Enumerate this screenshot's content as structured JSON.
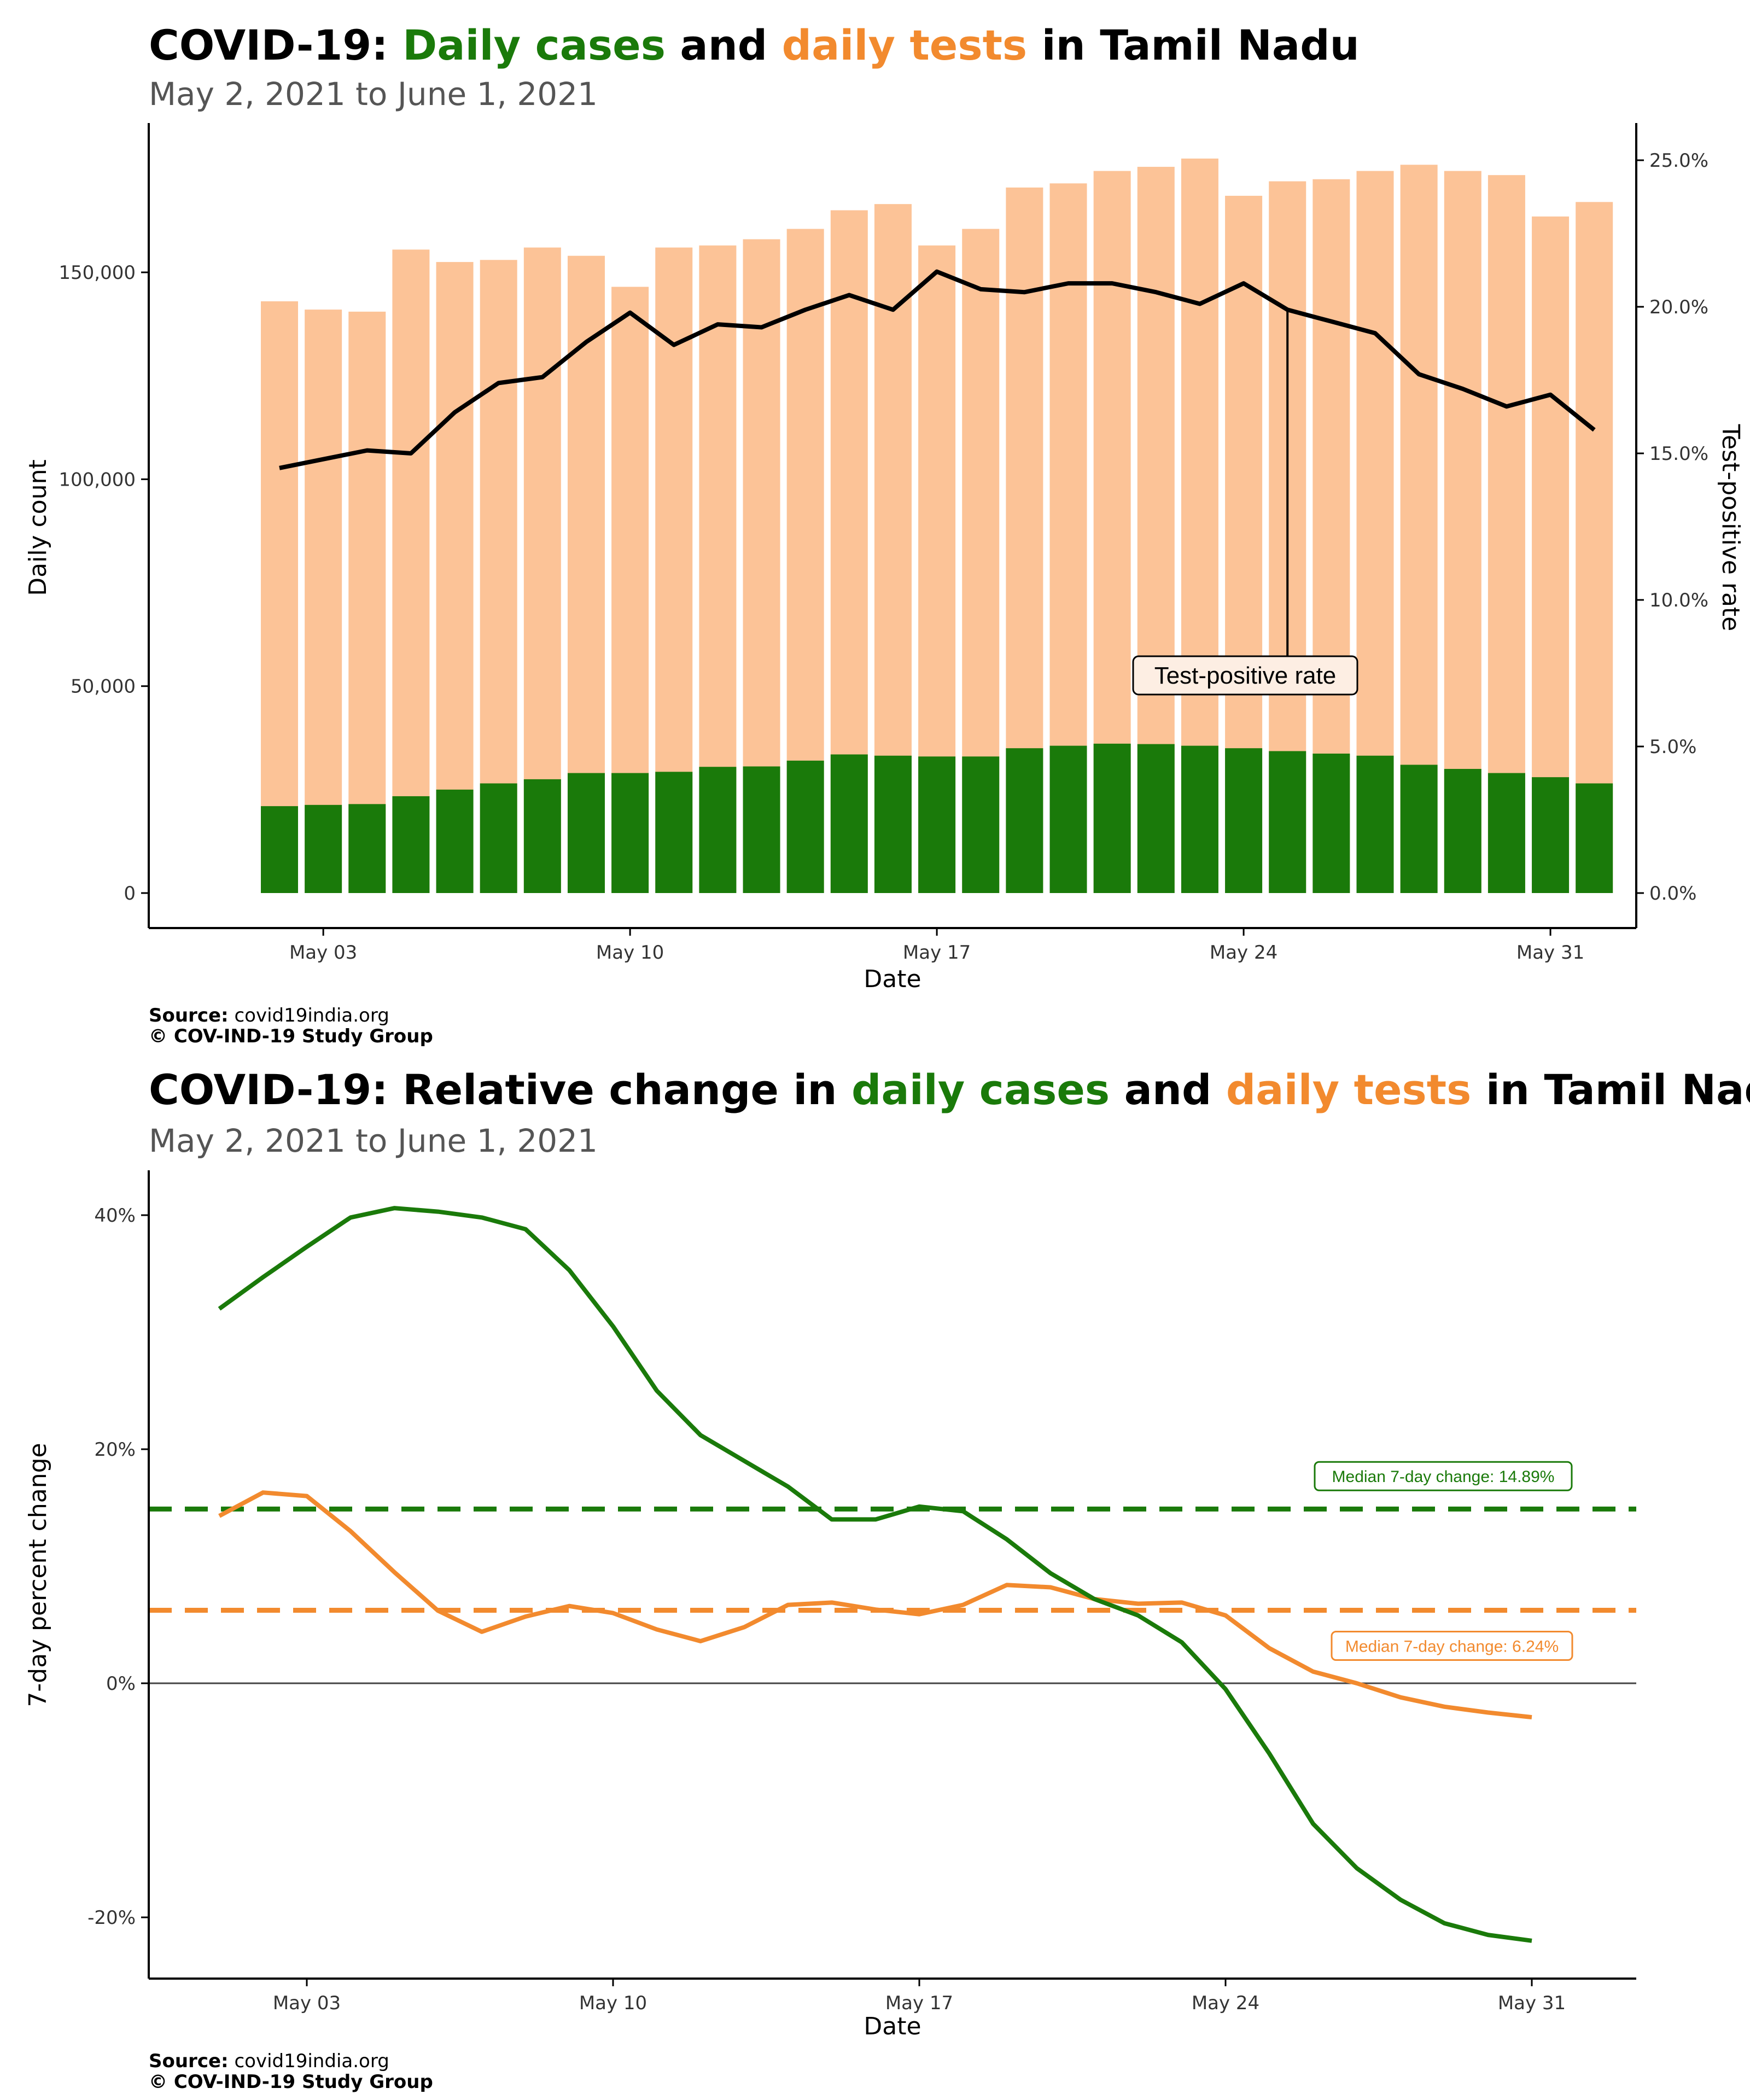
{
  "chart1": {
    "title_prefix": "COVID-19:",
    "title_cases": "Daily cases",
    "title_and": "and",
    "title_tests": "daily tests",
    "title_suffix": "in Tamil Nadu",
    "subtitle": "May  2, 2021 to June  1, 2021",
    "source_label": "Source:",
    "source_text": "covid19india.org",
    "copyright": "© COV-IND-19 Study Group"
  },
  "chart2": {
    "title_prefix": "COVID-19: Relative change in",
    "title_cases": "daily cases",
    "title_and": "and",
    "title_tests": "daily tests",
    "title_suffix": "in Tamil Nadu",
    "subtitle": "May  2, 2021 to June  1, 2021",
    "source_label": "Source:",
    "source_text": "covid19india.org",
    "copyright": "© COV-IND-19 Study Group"
  },
  "colors": {
    "cases": "#1a7a0a",
    "tests": "#fcc397",
    "tests_line": "#f28a2e",
    "tpr": "#000000"
  },
  "chart_data": [
    {
      "type": "bar",
      "xlabel": "Date",
      "ylabel": "Daily count",
      "y2label": "Test-positive rate",
      "ylim": [
        0,
        180000
      ],
      "y2lim": [
        0,
        25
      ],
      "yticks": [
        "0",
        "50,000",
        "100,000",
        "150,000"
      ],
      "yticks_values": [
        0,
        50000,
        100000,
        150000
      ],
      "y2ticks": [
        "0.0%",
        "5.0%",
        "10.0%",
        "15.0%",
        "20.0%",
        "25.0%"
      ],
      "y2ticks_values": [
        0,
        5,
        10,
        15,
        20,
        25
      ],
      "xticks": [
        "May 03",
        "May 10",
        "May 17",
        "May 24",
        "May 31"
      ],
      "xticks_day": [
        1,
        8,
        15,
        22,
        29
      ],
      "annotation": "Test-positive rate",
      "dates": [
        "2021-05-02",
        "2021-05-03",
        "2021-05-04",
        "2021-05-05",
        "2021-05-06",
        "2021-05-07",
        "2021-05-08",
        "2021-05-09",
        "2021-05-10",
        "2021-05-11",
        "2021-05-12",
        "2021-05-13",
        "2021-05-14",
        "2021-05-15",
        "2021-05-16",
        "2021-05-17",
        "2021-05-18",
        "2021-05-19",
        "2021-05-20",
        "2021-05-21",
        "2021-05-22",
        "2021-05-23",
        "2021-05-24",
        "2021-05-25",
        "2021-05-26",
        "2021-05-27",
        "2021-05-28",
        "2021-05-29",
        "2021-05-30",
        "2021-05-31",
        "2021-06-01"
      ],
      "series": [
        {
          "name": "Daily tests",
          "values": [
            143000,
            141000,
            140500,
            155500,
            152500,
            153000,
            156000,
            154000,
            146500,
            156000,
            156500,
            158000,
            160500,
            165000,
            166500,
            156500,
            160500,
            170500,
            171500,
            174500,
            175500,
            177500,
            168500,
            172000,
            172500,
            174500,
            176000,
            174500,
            173500,
            163500,
            167000
          ]
        },
        {
          "name": "Daily cases",
          "values": [
            21000,
            21300,
            21500,
            23400,
            25000,
            26500,
            27500,
            29000,
            29000,
            29300,
            30500,
            30600,
            32000,
            33500,
            33200,
            33000,
            33000,
            35000,
            35600,
            36100,
            36000,
            35600,
            35000,
            34300,
            33700,
            33200,
            31000,
            30000,
            29000,
            28000,
            26500
          ]
        },
        {
          "name": "Test-positive rate",
          "values": [
            14.5,
            14.8,
            15.1,
            15.0,
            16.4,
            17.4,
            17.6,
            18.8,
            19.8,
            18.7,
            19.4,
            19.3,
            19.9,
            20.4,
            19.9,
            21.2,
            20.6,
            20.5,
            20.8,
            20.8,
            20.5,
            20.1,
            20.8,
            19.9,
            19.5,
            19.1,
            17.7,
            17.2,
            16.6,
            17.0,
            15.8
          ]
        }
      ]
    },
    {
      "type": "line",
      "xlabel": "Date",
      "ylabel": "7-day percent change",
      "ylim": [
        -25,
        43
      ],
      "yticks": [
        "-20%",
        "0%",
        "20%",
        "40%"
      ],
      "yticks_values": [
        -20,
        0,
        20,
        40
      ],
      "xticks": [
        "May 03",
        "May 10",
        "May 17",
        "May 24",
        "May 31"
      ],
      "xticks_day": [
        1,
        8,
        15,
        22,
        29
      ],
      "median_cases_label": "Median 7-day change: 14.89%",
      "median_cases": 14.89,
      "median_tests_label": "Median 7-day change: 6.24%",
      "median_tests": 6.24,
      "series": [
        {
          "name": "Daily cases",
          "x_day": [
            0,
            1,
            2,
            3,
            4,
            5,
            6,
            7,
            8,
            9,
            10,
            11,
            12,
            13,
            14,
            15,
            16,
            17,
            18,
            19,
            20,
            21,
            22,
            23,
            24,
            25,
            26,
            27,
            28,
            29,
            30
          ],
          "values": [
            32.0,
            34.7,
            37.3,
            39.8,
            40.6,
            40.3,
            39.8,
            38.8,
            35.3,
            30.5,
            25.0,
            21.2,
            19.0,
            16.8,
            14.0,
            14.0,
            15.1,
            14.7,
            12.3,
            9.4,
            7.2,
            5.8,
            3.5,
            -0.5,
            -6.0,
            -12.0,
            -15.8,
            -18.5,
            -20.5,
            -21.5,
            -22.0
          ]
        },
        {
          "name": "Daily tests",
          "x_day": [
            0,
            1,
            2,
            3,
            4,
            5,
            6,
            7,
            8,
            9,
            10,
            11,
            12,
            13,
            14,
            15,
            16,
            17,
            18,
            19,
            20,
            21,
            22,
            23,
            24,
            25,
            26,
            27,
            28,
            29,
            30
          ],
          "values": [
            14.3,
            16.3,
            16.0,
            13.0,
            9.5,
            6.2,
            4.4,
            5.7,
            6.6,
            6.0,
            4.6,
            3.6,
            4.8,
            6.7,
            6.9,
            6.3,
            5.9,
            6.7,
            8.4,
            8.2,
            7.2,
            6.8,
            6.9,
            5.8,
            3.0,
            1.0,
            0.0,
            -1.2,
            -2.0,
            -2.5,
            -2.9
          ]
        }
      ]
    }
  ]
}
